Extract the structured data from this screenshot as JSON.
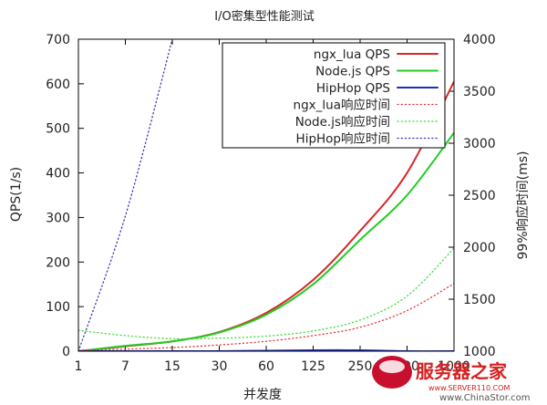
{
  "chart_data": {
    "type": "line",
    "title": "I/O密集型性能测试",
    "xlabel": "并发度",
    "ylabel": "QPS(1/s)",
    "y2label": "99%响应时间(ms)",
    "x_ticks": [
      "1",
      "7",
      "15",
      "30",
      "60",
      "125",
      "250",
      "500",
      "1000"
    ],
    "ylim": [
      0,
      700
    ],
    "y_ticks": [
      0,
      100,
      200,
      300,
      400,
      500,
      600,
      700
    ],
    "y2lim": [
      1000,
      4000
    ],
    "y2_ticks": [
      1000,
      1500,
      2000,
      2500,
      3000,
      3500,
      4000
    ],
    "grid": false,
    "legend_position": "top-right",
    "x_positions": [
      0,
      1,
      2,
      3,
      4,
      5,
      6,
      7,
      8
    ],
    "series": [
      {
        "name": "ngx_lua QPS",
        "axis": "left",
        "color": "#d62728",
        "style": "solid",
        "values": [
          0,
          11,
          22,
          43,
          86,
          160,
          270,
          400,
          605
        ]
      },
      {
        "name": "Node.js QPS",
        "axis": "left",
        "color": "#22cc22",
        "style": "solid",
        "values": [
          0,
          12,
          22,
          42,
          82,
          150,
          250,
          350,
          490
        ]
      },
      {
        "name": "HipHop QPS",
        "axis": "left",
        "color": "#1f2fbf",
        "style": "solid",
        "values": [
          0,
          0,
          0,
          0,
          1,
          2,
          2,
          0,
          0
        ]
      },
      {
        "name": "ngx_lua响应时间",
        "axis": "right",
        "color": "#e04040",
        "style": "dotted",
        "values": [
          1010,
          1020,
          1035,
          1060,
          1095,
          1150,
          1230,
          1390,
          1650
        ]
      },
      {
        "name": "Node.js响应时间",
        "axis": "right",
        "color": "#44dd44",
        "style": "dotted",
        "values": [
          1200,
          1150,
          1120,
          1125,
          1145,
          1195,
          1300,
          1530,
          1990
        ]
      },
      {
        "name": "HipHop响应时间",
        "axis": "right",
        "color": "#3a3ab0",
        "style": "dotted",
        "values": [
          1000,
          2300,
          4000
        ]
      }
    ]
  },
  "watermark": {
    "brand": "服务器之家",
    "url1": "www.SERVER110.COM",
    "url2": "www.ChinaStor.com"
  }
}
